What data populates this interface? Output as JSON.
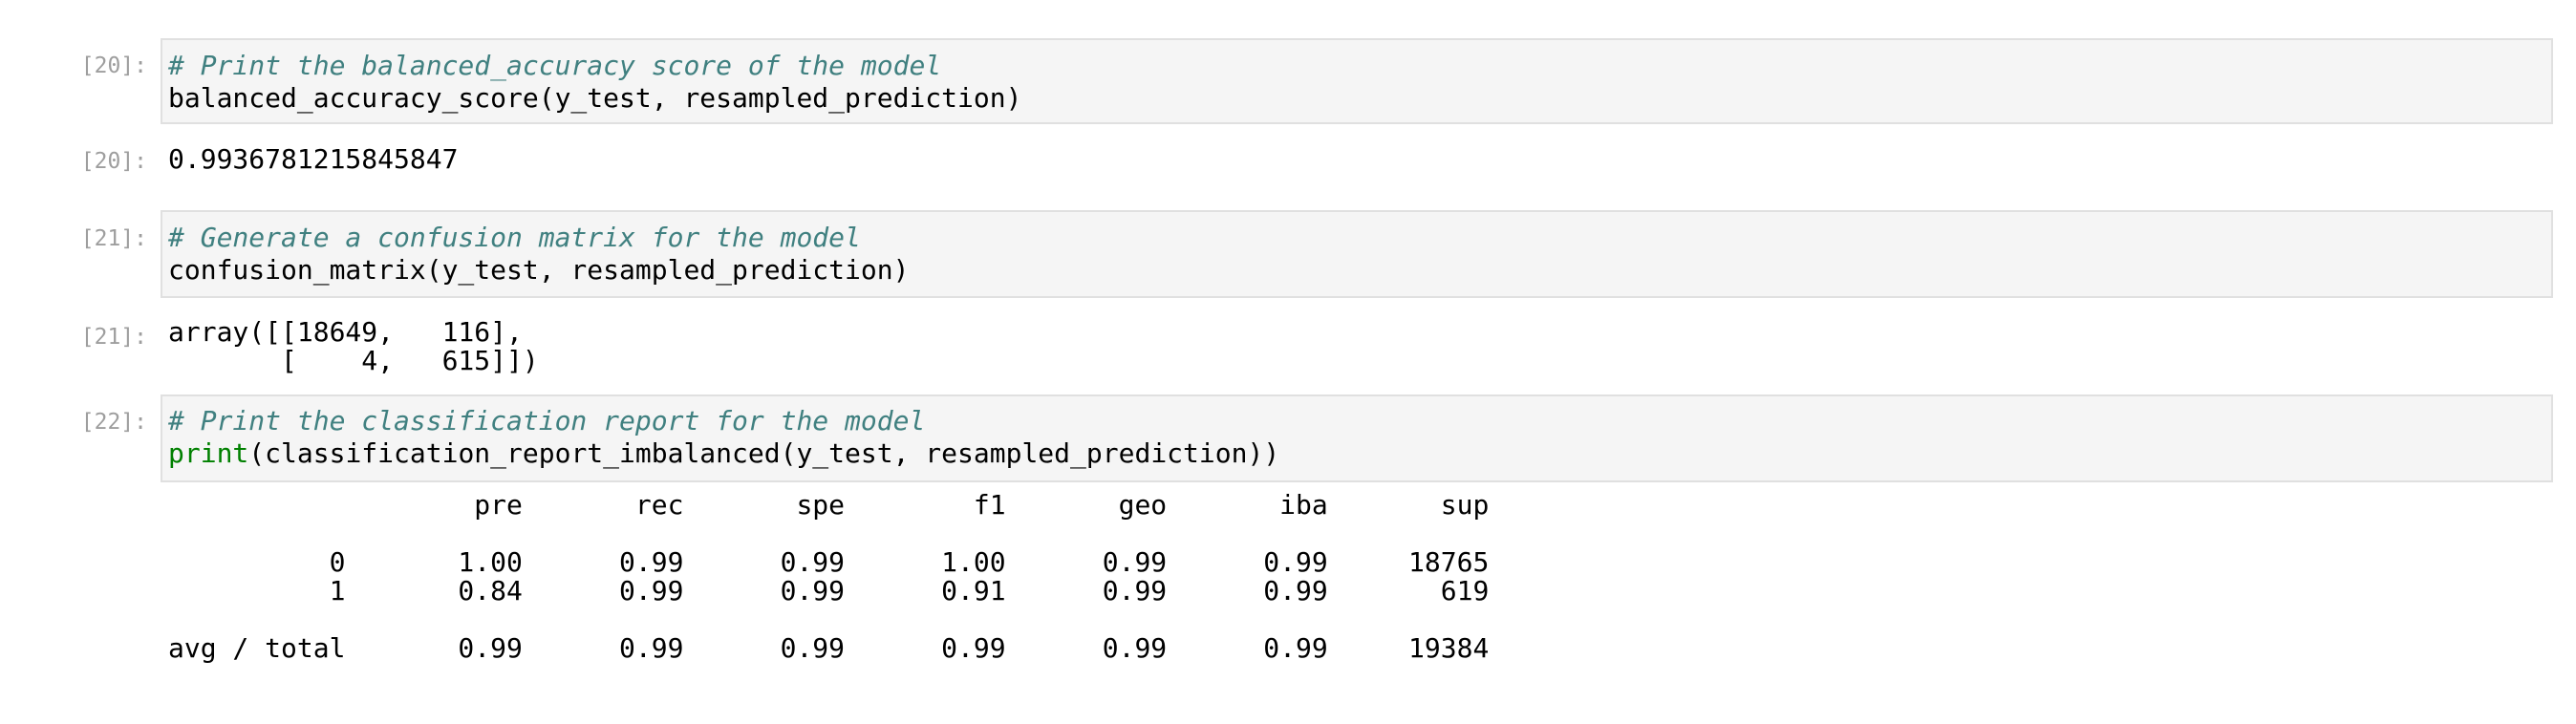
{
  "cells": [
    {
      "input_prompt": "[20]:",
      "comment": "# Print the balanced_accuracy score of the model",
      "code": "balanced_accuracy_score(y_test, resampled_prediction)",
      "output_prompt": "[20]:",
      "output": "0.9936781215845847"
    },
    {
      "input_prompt": "[21]:",
      "comment": "# Generate a confusion matrix for the model",
      "code": "confusion_matrix(y_test, resampled_prediction)",
      "output_prompt": "[21]:",
      "output_lines": [
        "array([[18649,   116],",
        "       [    4,   615]])"
      ]
    },
    {
      "input_prompt": "[22]:",
      "comment": "# Print the classification report for the model",
      "code_builtin": "print",
      "code_rest": "(classification_report_imbalanced(y_test, resampled_prediction))",
      "report_lines": [
        "                   pre       rec       spe        f1       geo       iba       sup",
        "",
        "          0       1.00      0.99      0.99      1.00      0.99      0.99     18765",
        "          1       0.84      0.99      0.99      0.91      0.99      0.99       619",
        "",
        "avg / total       0.99      0.99      0.99      0.99      0.99      0.99     19384"
      ]
    }
  ]
}
